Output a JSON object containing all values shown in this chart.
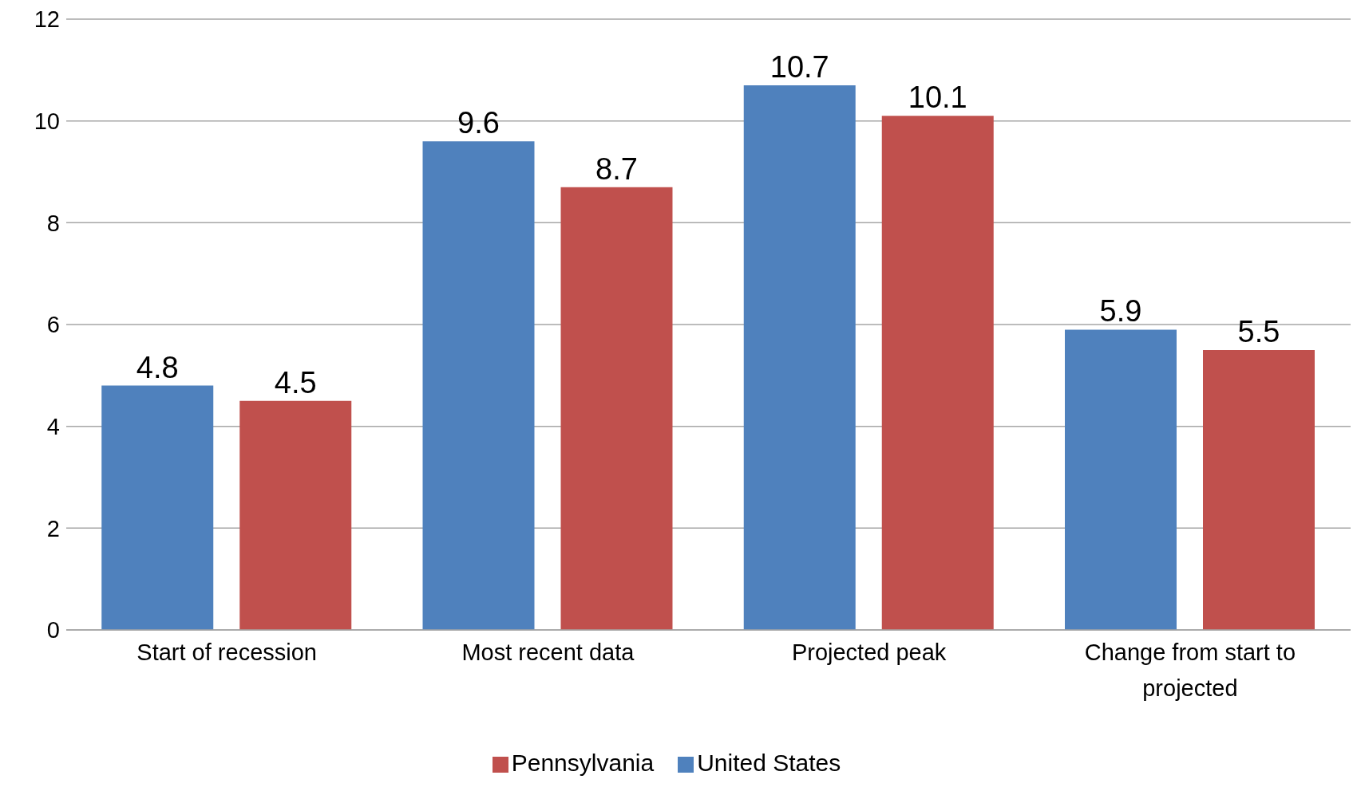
{
  "chart_data": {
    "type": "bar",
    "categories": [
      "Start of recession",
      "Most recent data",
      "Projected peak",
      "Change from start to projected"
    ],
    "series": [
      {
        "name": "United States",
        "color": "#4f81bd",
        "values": [
          4.8,
          9.6,
          10.7,
          5.9
        ]
      },
      {
        "name": "Pennsylvania",
        "color": "#c0504d",
        "values": [
          4.5,
          8.7,
          10.1,
          5.5
        ]
      }
    ],
    "ylim": [
      0,
      12
    ],
    "yticks": [
      0,
      2,
      4,
      6,
      8,
      10,
      12
    ],
    "grid": "y",
    "legend": "bottom",
    "data_labels": true
  }
}
